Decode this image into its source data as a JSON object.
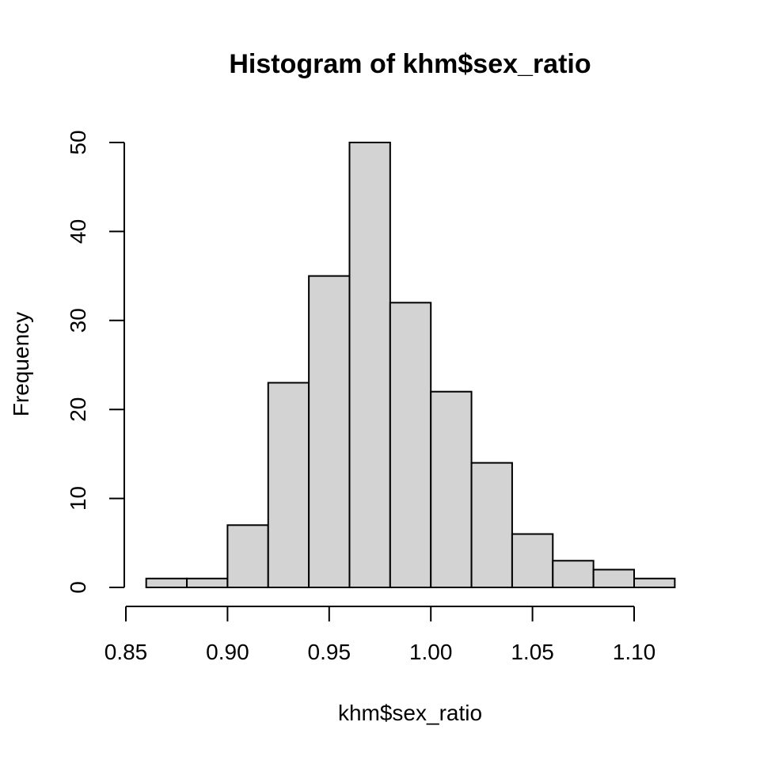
{
  "chart_data": {
    "type": "bar",
    "title": "Histogram of khm$sex_ratio",
    "xlabel": "khm$sex_ratio",
    "ylabel": "Frequency",
    "bin_edges": [
      0.86,
      0.88,
      0.9,
      0.92,
      0.94,
      0.96,
      0.98,
      1.0,
      1.02,
      1.04,
      1.06,
      1.08,
      1.1,
      1.12
    ],
    "values": [
      1,
      1,
      7,
      23,
      35,
      50,
      32,
      22,
      14,
      6,
      3,
      2,
      1
    ],
    "xlim": [
      0.85,
      1.12
    ],
    "ylim": [
      0,
      50
    ],
    "xticks": [
      "0.85",
      "0.90",
      "0.95",
      "1.00",
      "1.05",
      "1.10"
    ],
    "yticks": [
      "0",
      "10",
      "20",
      "30",
      "40",
      "50"
    ],
    "bar_fill": "#d3d3d3",
    "grid": false
  }
}
